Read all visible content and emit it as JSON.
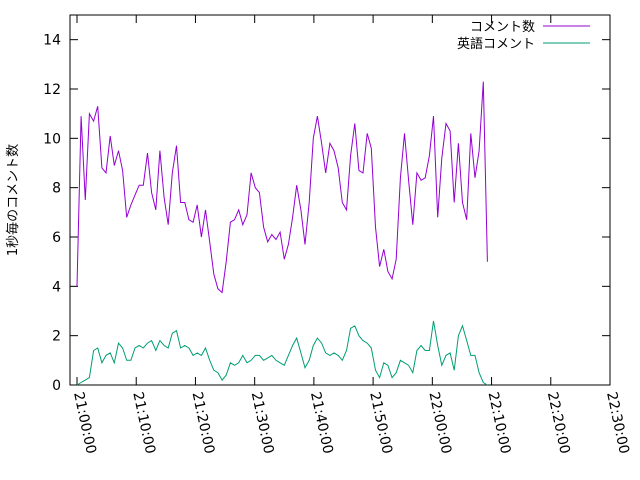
{
  "chart_data": {
    "type": "line",
    "ylabel": "1秒毎のコメント数",
    "ylim": [
      0,
      15
    ],
    "y_ticks": [
      "0",
      "2",
      "4",
      "6",
      "8",
      "10",
      "12",
      "14"
    ],
    "x_ticks": [
      "21:00:00",
      "21:10:00",
      "21:20:00",
      "21:30:00",
      "21:40:00",
      "21:50:00",
      "22:00:00",
      "22:10:00",
      "22:20:00",
      "22:30:00"
    ],
    "xlim_minutes": [
      0,
      90
    ],
    "legend_position": "top-right",
    "grid": false,
    "series": [
      {
        "name": "コメント数",
        "color": "#9400d3",
        "values": [
          [
            0.0,
            4.0
          ],
          [
            0.7,
            10.9
          ],
          [
            1.4,
            7.5
          ],
          [
            2.1,
            11.0
          ],
          [
            2.8,
            10.7
          ],
          [
            3.5,
            11.3
          ],
          [
            4.2,
            8.8
          ],
          [
            4.9,
            8.6
          ],
          [
            5.6,
            10.1
          ],
          [
            6.3,
            8.9
          ],
          [
            7.0,
            9.5
          ],
          [
            7.7,
            8.7
          ],
          [
            8.4,
            6.8
          ],
          [
            9.1,
            7.3
          ],
          [
            9.8,
            7.7
          ],
          [
            10.5,
            8.1
          ],
          [
            11.2,
            8.1
          ],
          [
            11.9,
            9.4
          ],
          [
            12.6,
            7.8
          ],
          [
            13.3,
            7.1
          ],
          [
            14.0,
            9.5
          ],
          [
            14.7,
            7.6
          ],
          [
            15.4,
            6.5
          ],
          [
            16.1,
            8.6
          ],
          [
            16.8,
            9.7
          ],
          [
            17.5,
            7.4
          ],
          [
            18.2,
            7.4
          ],
          [
            18.9,
            6.7
          ],
          [
            19.6,
            6.6
          ],
          [
            20.3,
            7.3
          ],
          [
            21.0,
            6.0
          ],
          [
            21.7,
            7.1
          ],
          [
            22.4,
            5.8
          ],
          [
            23.1,
            4.5
          ],
          [
            23.8,
            3.9
          ],
          [
            24.5,
            3.75
          ],
          [
            25.2,
            5.0
          ],
          [
            25.9,
            6.6
          ],
          [
            26.6,
            6.7
          ],
          [
            27.3,
            7.1
          ],
          [
            28.0,
            6.5
          ],
          [
            28.7,
            6.9
          ],
          [
            29.4,
            8.6
          ],
          [
            30.1,
            8.0
          ],
          [
            30.8,
            7.8
          ],
          [
            31.5,
            6.4
          ],
          [
            32.2,
            5.8
          ],
          [
            32.9,
            6.1
          ],
          [
            33.6,
            5.9
          ],
          [
            34.3,
            6.2
          ],
          [
            35.0,
            5.1
          ],
          [
            35.7,
            5.7
          ],
          [
            36.4,
            6.8
          ],
          [
            37.1,
            8.1
          ],
          [
            37.8,
            7.1
          ],
          [
            38.5,
            5.7
          ],
          [
            39.2,
            7.4
          ],
          [
            39.9,
            10.0
          ],
          [
            40.6,
            10.9
          ],
          [
            41.3,
            9.8
          ],
          [
            42.0,
            8.6
          ],
          [
            42.7,
            9.8
          ],
          [
            43.4,
            9.5
          ],
          [
            44.1,
            8.8
          ],
          [
            44.8,
            7.4
          ],
          [
            45.5,
            7.1
          ],
          [
            46.2,
            9.3
          ],
          [
            46.9,
            10.6
          ],
          [
            47.6,
            8.7
          ],
          [
            48.3,
            8.6
          ],
          [
            49.0,
            10.2
          ],
          [
            49.7,
            9.6
          ],
          [
            50.4,
            6.4
          ],
          [
            51.1,
            4.8
          ],
          [
            51.8,
            5.5
          ],
          [
            52.5,
            4.6
          ],
          [
            53.2,
            4.3
          ],
          [
            53.9,
            5.1
          ],
          [
            54.6,
            8.4
          ],
          [
            55.3,
            10.2
          ],
          [
            56.0,
            8.3
          ],
          [
            56.7,
            6.5
          ],
          [
            57.4,
            8.6
          ],
          [
            58.1,
            8.3
          ],
          [
            58.8,
            8.4
          ],
          [
            59.5,
            9.3
          ],
          [
            60.2,
            10.9
          ],
          [
            60.9,
            6.8
          ],
          [
            61.6,
            9.2
          ],
          [
            62.3,
            10.6
          ],
          [
            63.0,
            10.3
          ],
          [
            63.7,
            7.4
          ],
          [
            64.4,
            9.8
          ],
          [
            65.1,
            7.4
          ],
          [
            65.8,
            6.7
          ],
          [
            66.5,
            10.2
          ],
          [
            67.2,
            8.4
          ],
          [
            67.9,
            9.5
          ],
          [
            68.6,
            12.3
          ],
          [
            69.3,
            5.0
          ]
        ]
      },
      {
        "name": "英語コメント",
        "color": "#009e73",
        "values": [
          [
            0.0,
            0.0
          ],
          [
            0.7,
            0.1
          ],
          [
            1.4,
            0.2
          ],
          [
            2.1,
            0.3
          ],
          [
            2.8,
            1.4
          ],
          [
            3.5,
            1.5
          ],
          [
            4.2,
            0.9
          ],
          [
            4.9,
            1.2
          ],
          [
            5.6,
            1.3
          ],
          [
            6.3,
            0.9
          ],
          [
            7.0,
            1.7
          ],
          [
            7.7,
            1.5
          ],
          [
            8.4,
            1.0
          ],
          [
            9.1,
            1.0
          ],
          [
            9.8,
            1.5
          ],
          [
            10.5,
            1.6
          ],
          [
            11.2,
            1.5
          ],
          [
            11.9,
            1.7
          ],
          [
            12.6,
            1.8
          ],
          [
            13.3,
            1.4
          ],
          [
            14.0,
            1.8
          ],
          [
            14.7,
            1.6
          ],
          [
            15.4,
            1.5
          ],
          [
            16.1,
            2.1
          ],
          [
            16.8,
            2.2
          ],
          [
            17.5,
            1.5
          ],
          [
            18.2,
            1.6
          ],
          [
            18.9,
            1.5
          ],
          [
            19.6,
            1.2
          ],
          [
            20.3,
            1.3
          ],
          [
            21.0,
            1.2
          ],
          [
            21.7,
            1.5
          ],
          [
            22.4,
            1.0
          ],
          [
            23.1,
            0.6
          ],
          [
            23.8,
            0.5
          ],
          [
            24.5,
            0.2
          ],
          [
            25.2,
            0.4
          ],
          [
            25.9,
            0.9
          ],
          [
            26.6,
            0.8
          ],
          [
            27.3,
            0.9
          ],
          [
            28.0,
            1.2
          ],
          [
            28.7,
            0.9
          ],
          [
            29.4,
            1.0
          ],
          [
            30.1,
            1.2
          ],
          [
            30.8,
            1.2
          ],
          [
            31.5,
            1.0
          ],
          [
            32.2,
            1.1
          ],
          [
            32.9,
            1.2
          ],
          [
            33.6,
            1.0
          ],
          [
            34.3,
            0.9
          ],
          [
            35.0,
            0.8
          ],
          [
            35.7,
            1.2
          ],
          [
            36.4,
            1.6
          ],
          [
            37.1,
            1.9
          ],
          [
            37.8,
            1.3
          ],
          [
            38.5,
            0.7
          ],
          [
            39.2,
            1.0
          ],
          [
            39.9,
            1.6
          ],
          [
            40.6,
            1.9
          ],
          [
            41.3,
            1.7
          ],
          [
            42.0,
            1.3
          ],
          [
            42.7,
            1.2
          ],
          [
            43.4,
            1.3
          ],
          [
            44.1,
            1.2
          ],
          [
            44.8,
            1.0
          ],
          [
            45.5,
            1.4
          ],
          [
            46.2,
            2.3
          ],
          [
            46.9,
            2.4
          ],
          [
            47.6,
            2.0
          ],
          [
            48.3,
            1.8
          ],
          [
            49.0,
            1.7
          ],
          [
            49.7,
            1.5
          ],
          [
            50.4,
            0.6
          ],
          [
            51.1,
            0.3
          ],
          [
            51.8,
            0.9
          ],
          [
            52.5,
            0.8
          ],
          [
            53.2,
            0.3
          ],
          [
            53.9,
            0.5
          ],
          [
            54.6,
            1.0
          ],
          [
            55.3,
            0.9
          ],
          [
            56.0,
            0.8
          ],
          [
            56.7,
            0.5
          ],
          [
            57.4,
            1.4
          ],
          [
            58.1,
            1.6
          ],
          [
            58.8,
            1.4
          ],
          [
            59.5,
            1.4
          ],
          [
            60.2,
            2.6
          ],
          [
            60.9,
            1.6
          ],
          [
            61.6,
            0.8
          ],
          [
            62.3,
            1.2
          ],
          [
            63.0,
            1.3
          ],
          [
            63.7,
            0.6
          ],
          [
            64.4,
            2.0
          ],
          [
            65.1,
            2.4
          ],
          [
            65.8,
            1.8
          ],
          [
            66.5,
            1.2
          ],
          [
            67.2,
            1.2
          ],
          [
            67.9,
            0.5
          ],
          [
            68.6,
            0.1
          ],
          [
            69.3,
            0.0
          ]
        ]
      }
    ]
  }
}
